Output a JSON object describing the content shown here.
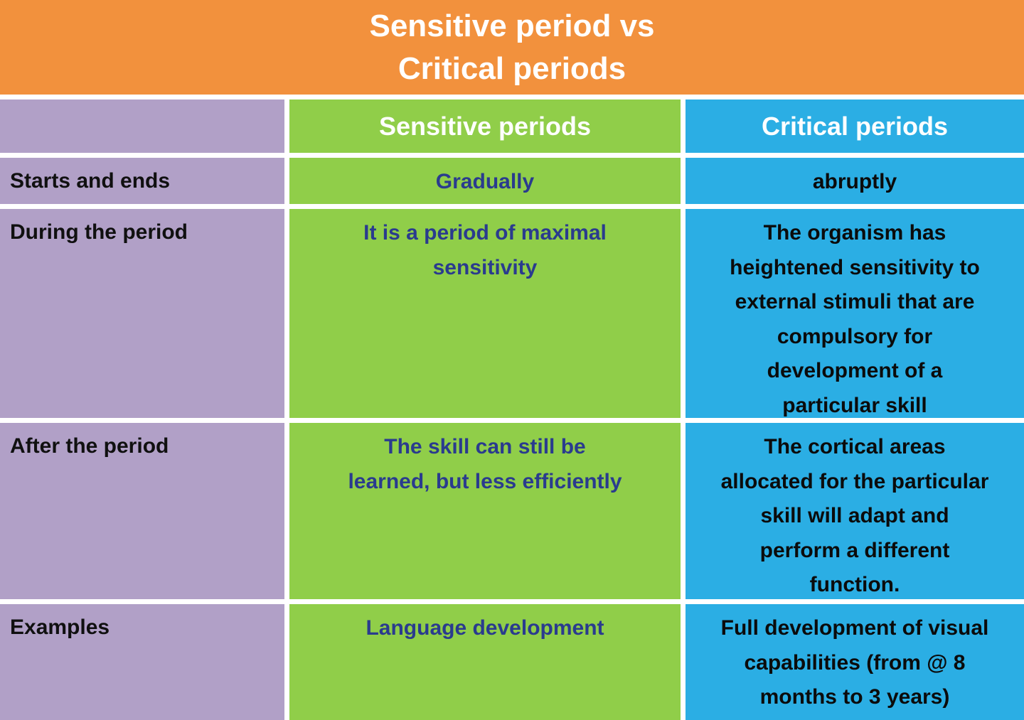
{
  "title": {
    "line1": "Sensitive period vs",
    "line2": "Critical periods"
  },
  "table": {
    "column_headers": {
      "sensitive": "Sensitive periods",
      "critical": "Critical periods"
    },
    "rows": [
      {
        "label": "Starts and ends",
        "sensitive": "Gradually",
        "critical": "abruptly"
      },
      {
        "label": "During the period",
        "sensitive": "It is a period of maximal\nsensitivity",
        "critical": "The organism has\nheightened sensitivity to\nexternal stimuli that are\ncompulsory for\ndevelopment of a\nparticular skill"
      },
      {
        "label": "After the period",
        "sensitive": "The skill can still be\nlearned, but less efficiently",
        "critical": "The cortical areas\nallocated for the particular\nskill will adapt and\nperform a different\nfunction."
      },
      {
        "label": "Examples",
        "sensitive": "Language development",
        "critical": "Full development of visual\ncapabilities (from @ 8\nmonths to 3 years)"
      }
    ]
  },
  "colors": {
    "banner_orange": "#F2913D",
    "label_column_purple": "#B1A0C7",
    "sensitive_column_green": "#90CE49",
    "critical_column_blue": "#2BAEE4",
    "sensitive_text_navy": "#2A3B8E",
    "header_text_white": "#FFFFFF",
    "body_text_black": "#101010"
  }
}
